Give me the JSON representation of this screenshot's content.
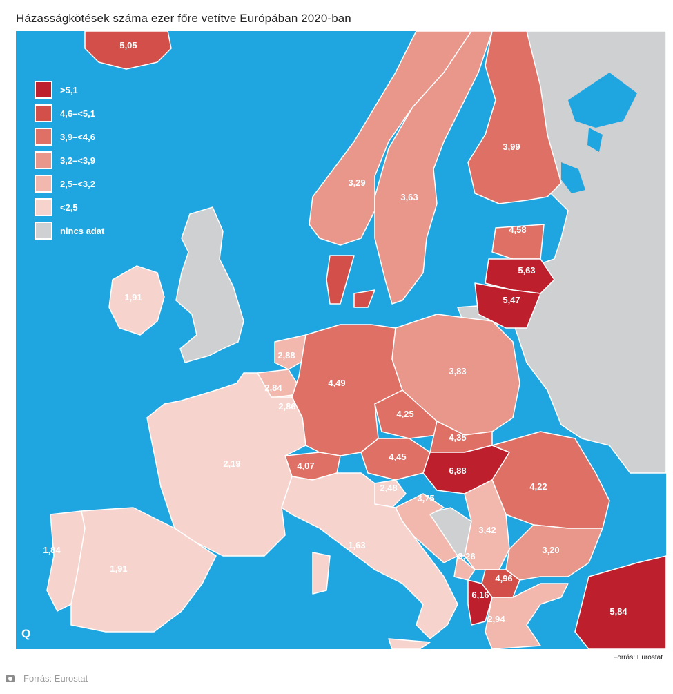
{
  "title": "Házasságkötések száma ezer főre vetítve Európában 2020-ban",
  "colors": {
    "sea": "#1fa6e0",
    "border": "#ffffff",
    "nodata": "#cfd0d2",
    "c1": "#be1f2d",
    "c2": "#d24f4a",
    "c3": "#df7066",
    "c4": "#e9968b",
    "c5": "#f2b8ae",
    "c6": "#f7d3cd"
  },
  "legend": [
    {
      "label": ">5,1",
      "color": "#be1f2d"
    },
    {
      "label": "4,6–<5,1",
      "color": "#d24f4a"
    },
    {
      "label": "3,9–<4,6",
      "color": "#df7066"
    },
    {
      "label": "3,2–<3,9",
      "color": "#e9968b"
    },
    {
      "label": "2,5–<3,2",
      "color": "#f2b8ae"
    },
    {
      "label": "<2,5",
      "color": "#f7d3cd"
    },
    {
      "label": "nincs adat",
      "color": "#cfd0d2"
    }
  ],
  "values": {
    "iceland": "5,05",
    "ireland": "1,91",
    "norway": "3,29",
    "sweden": "3,63",
    "finland": "3,99",
    "estonia": "4,58",
    "latvia": "5,63",
    "lithuania": "5,47",
    "netherlands": "2,88",
    "belgium": "2,84",
    "luxembourg": "2,86",
    "germany": "4,49",
    "poland": "3,83",
    "czechia": "4,25",
    "slovakia": "4,35",
    "austria": "4,45",
    "switzerland": "4,07",
    "hungary": "6,88",
    "romania": "4,22",
    "slovenia": "2,48",
    "croatia": "3,75",
    "serbia": "3,42",
    "montenegro": "3,26",
    "bulgaria": "3,20",
    "north_macedonia": "4,96",
    "albania": "6,16",
    "greece": "2,94",
    "turkey": "5,84",
    "france": "2,19",
    "portugal": "1,84",
    "spain": "1,91",
    "italy": "1,63"
  },
  "source_inner": "Forrás: Eurostat",
  "credit": "Forrás: Eurostat",
  "logo": "Q"
}
